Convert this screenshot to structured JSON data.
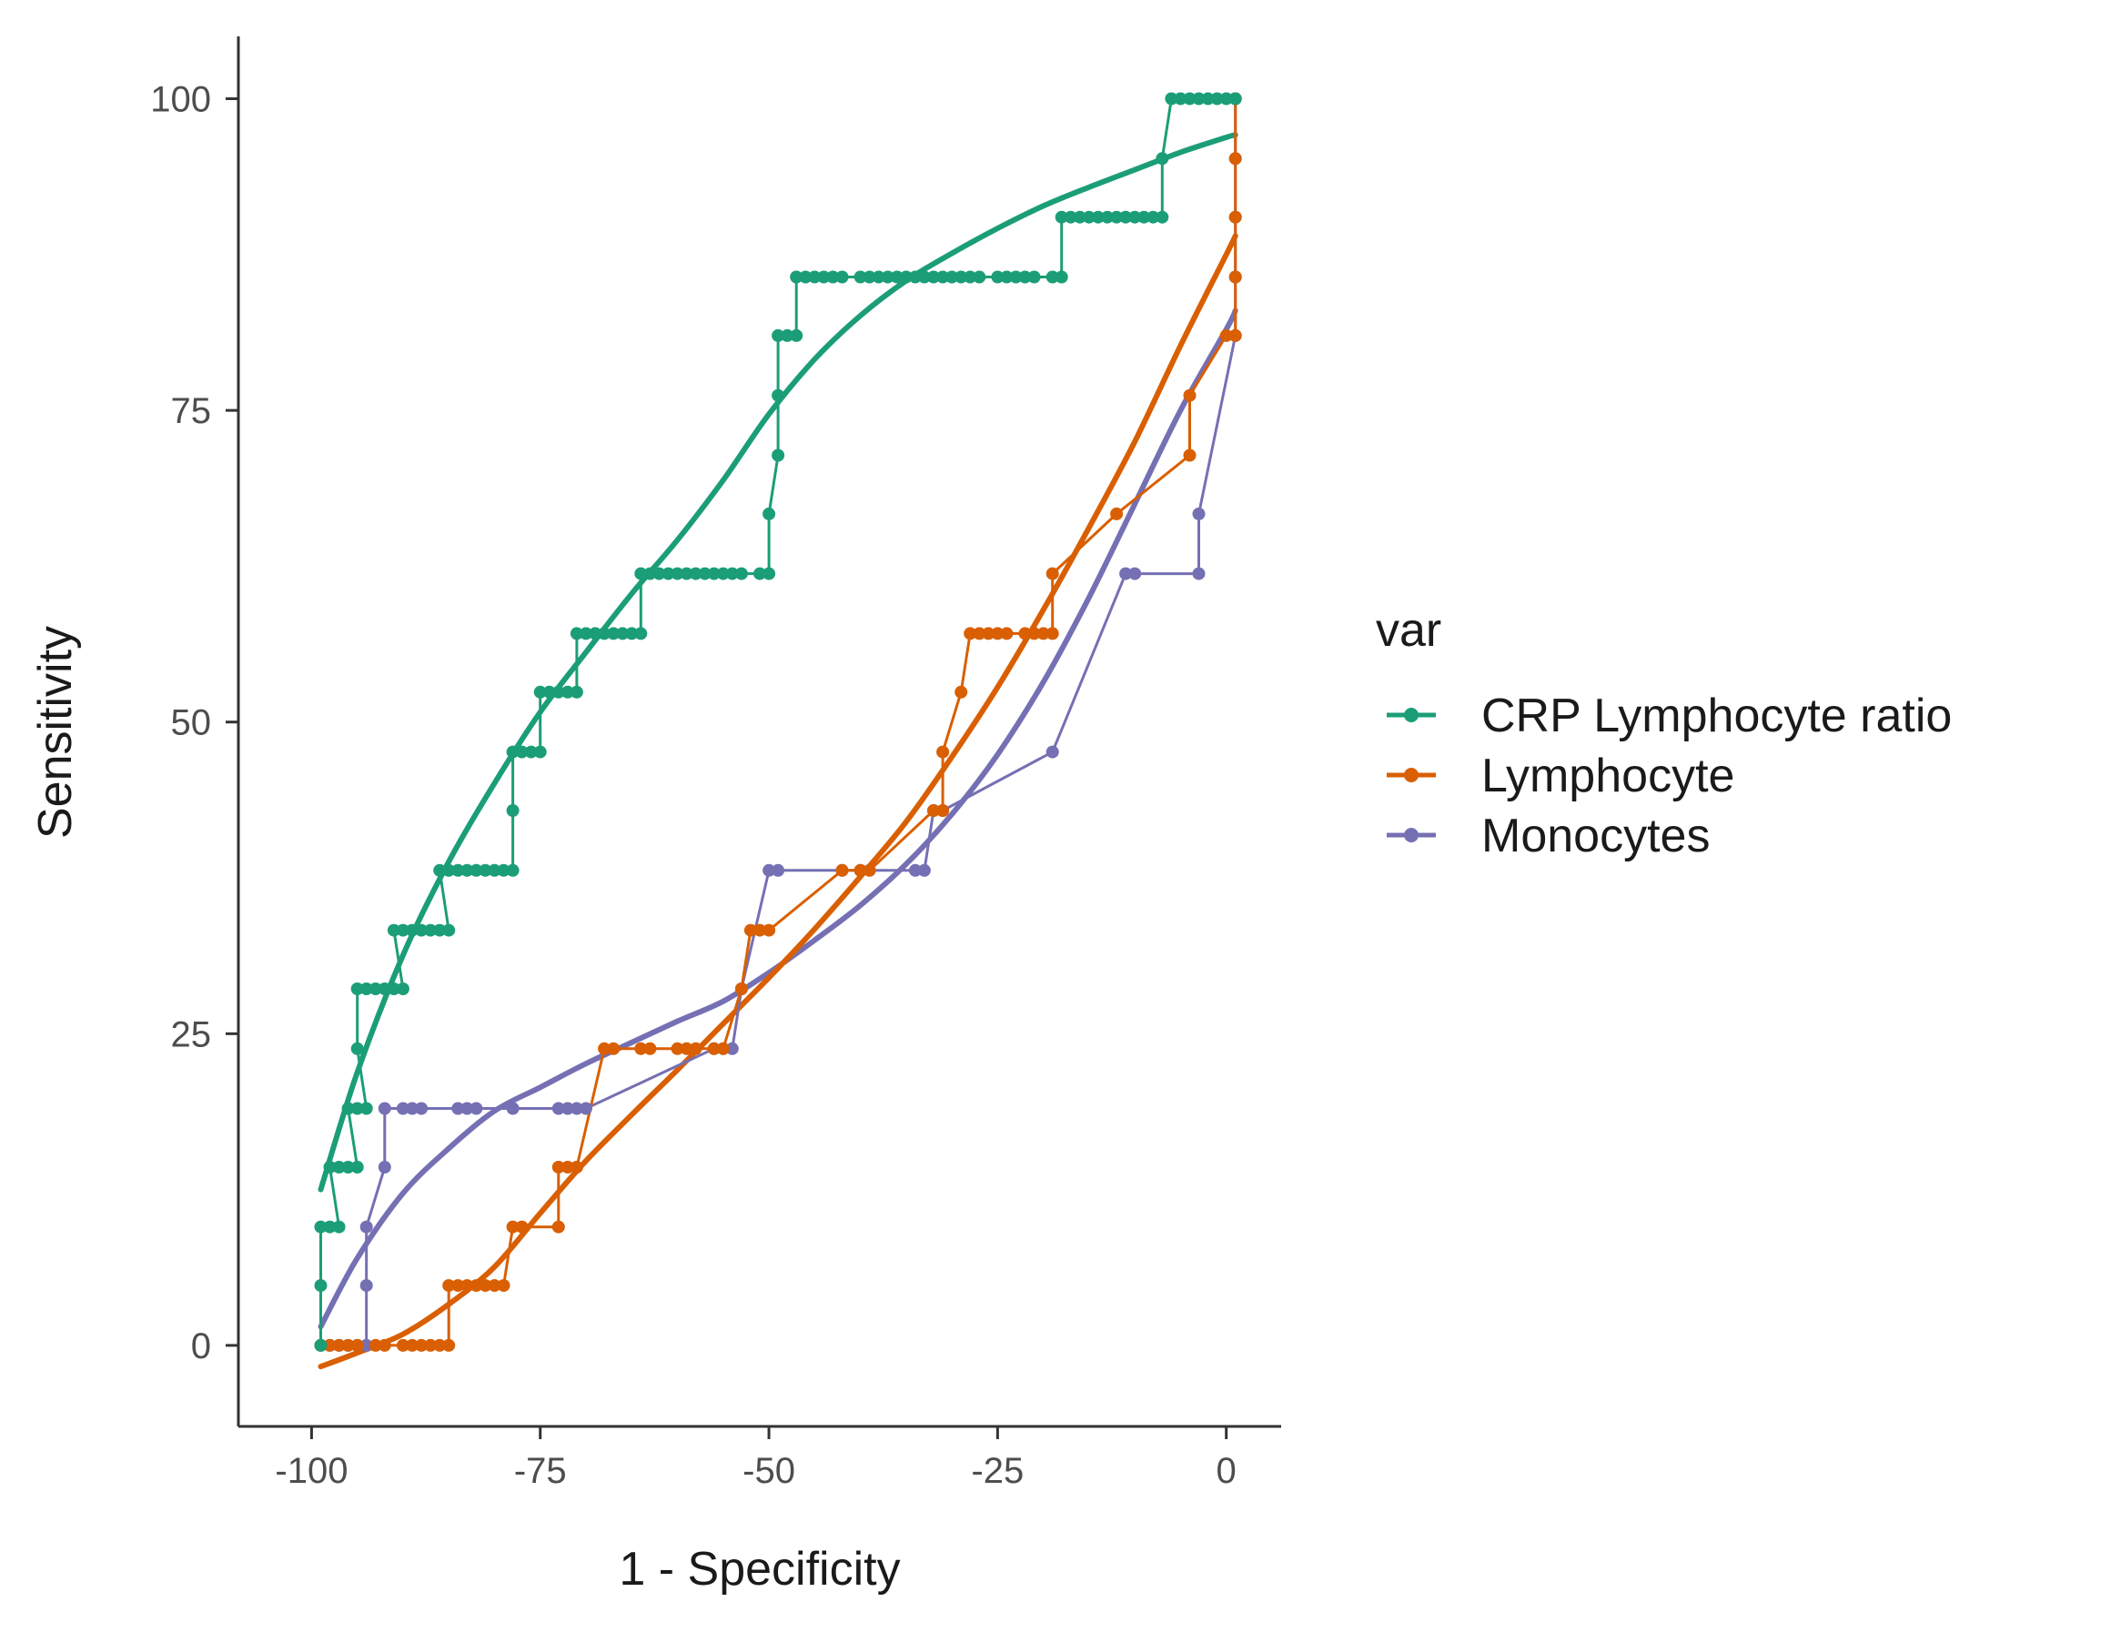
{
  "chart_data": {
    "type": "line",
    "title": "",
    "xlabel": "1 - Specificity",
    "ylabel": "Sensitivity",
    "xlim": [
      -108,
      6
    ],
    "ylim": [
      -6.5,
      105
    ],
    "x_ticks": [
      -100,
      -75,
      -50,
      -25,
      0
    ],
    "x_tick_labels": [
      "-100",
      "-75",
      "-50",
      "-25",
      "0"
    ],
    "y_ticks": [
      0,
      25,
      50,
      75,
      100
    ],
    "y_tick_labels": [
      "0",
      "25",
      "50",
      "75",
      "100"
    ],
    "grid": false,
    "legend": {
      "title": "var",
      "position": "right"
    },
    "series": [
      {
        "name": "CRP Lymphocyte ratio",
        "color": "#1b9e77",
        "points": [
          [
            -99,
            0
          ],
          [
            -99,
            4.8
          ],
          [
            -99,
            9.5
          ],
          [
            -98,
            9.5
          ],
          [
            -97,
            9.5
          ],
          [
            -98,
            14.3
          ],
          [
            -97,
            14.3
          ],
          [
            -96,
            14.3
          ],
          [
            -95,
            14.3
          ],
          [
            -96,
            19
          ],
          [
            -95,
            19
          ],
          [
            -94,
            19
          ],
          [
            -95,
            23.8
          ],
          [
            -95,
            28.6
          ],
          [
            -94,
            28.6
          ],
          [
            -93,
            28.6
          ],
          [
            -92,
            28.6
          ],
          [
            -91,
            28.6
          ],
          [
            -90,
            28.6
          ],
          [
            -91,
            33.3
          ],
          [
            -90,
            33.3
          ],
          [
            -89,
            33.3
          ],
          [
            -88,
            33.3
          ],
          [
            -87,
            33.3
          ],
          [
            -86,
            33.3
          ],
          [
            -85,
            33.3
          ],
          [
            -86,
            38.1
          ],
          [
            -85,
            38.1
          ],
          [
            -84,
            38.1
          ],
          [
            -83,
            38.1
          ],
          [
            -82,
            38.1
          ],
          [
            -81,
            38.1
          ],
          [
            -80,
            38.1
          ],
          [
            -79,
            38.1
          ],
          [
            -78,
            38.1
          ],
          [
            -78,
            42.9
          ],
          [
            -78,
            47.6
          ],
          [
            -77,
            47.6
          ],
          [
            -76,
            47.6
          ],
          [
            -75,
            47.6
          ],
          [
            -75,
            52.4
          ],
          [
            -74,
            52.4
          ],
          [
            -73,
            52.4
          ],
          [
            -72,
            52.4
          ],
          [
            -71,
            52.4
          ],
          [
            -71,
            57.1
          ],
          [
            -70,
            57.1
          ],
          [
            -69,
            57.1
          ],
          [
            -68,
            57.1
          ],
          [
            -67,
            57.1
          ],
          [
            -66,
            57.1
          ],
          [
            -65,
            57.1
          ],
          [
            -64,
            57.1
          ],
          [
            -64,
            61.9
          ],
          [
            -63,
            61.9
          ],
          [
            -62,
            61.9
          ],
          [
            -61,
            61.9
          ],
          [
            -60,
            61.9
          ],
          [
            -59,
            61.9
          ],
          [
            -58,
            61.9
          ],
          [
            -57,
            61.9
          ],
          [
            -56,
            61.9
          ],
          [
            -55,
            61.9
          ],
          [
            -54,
            61.9
          ],
          [
            -53,
            61.9
          ],
          [
            -51,
            61.9
          ],
          [
            -50,
            61.9
          ],
          [
            -50,
            66.7
          ],
          [
            -49,
            71.4
          ],
          [
            -49,
            76.2
          ],
          [
            -49,
            81
          ],
          [
            -48,
            81
          ],
          [
            -47,
            81
          ],
          [
            -47,
            85.7
          ],
          [
            -46,
            85.7
          ],
          [
            -45,
            85.7
          ],
          [
            -44,
            85.7
          ],
          [
            -43,
            85.7
          ],
          [
            -42,
            85.7
          ],
          [
            -40,
            85.7
          ],
          [
            -39,
            85.7
          ],
          [
            -38,
            85.7
          ],
          [
            -37,
            85.7
          ],
          [
            -36,
            85.7
          ],
          [
            -35,
            85.7
          ],
          [
            -34,
            85.7
          ],
          [
            -33,
            85.7
          ],
          [
            -32,
            85.7
          ],
          [
            -31,
            85.7
          ],
          [
            -30,
            85.7
          ],
          [
            -29,
            85.7
          ],
          [
            -28,
            85.7
          ],
          [
            -27,
            85.7
          ],
          [
            -25,
            85.7
          ],
          [
            -24,
            85.7
          ],
          [
            -23,
            85.7
          ],
          [
            -22,
            85.7
          ],
          [
            -21,
            85.7
          ],
          [
            -19,
            85.7
          ],
          [
            -18,
            85.7
          ],
          [
            -18,
            90.5
          ],
          [
            -17,
            90.5
          ],
          [
            -16,
            90.5
          ],
          [
            -15,
            90.5
          ],
          [
            -14,
            90.5
          ],
          [
            -13,
            90.5
          ],
          [
            -12,
            90.5
          ],
          [
            -11,
            90.5
          ],
          [
            -10,
            90.5
          ],
          [
            -9,
            90.5
          ],
          [
            -8,
            90.5
          ],
          [
            -7,
            90.5
          ],
          [
            -7,
            95.2
          ],
          [
            -6,
            100
          ],
          [
            -5,
            100
          ],
          [
            -4,
            100
          ],
          [
            -3,
            100
          ],
          [
            -2,
            100
          ],
          [
            -1,
            100
          ],
          [
            0,
            100
          ],
          [
            1,
            100
          ]
        ],
        "fit": [
          [
            -99,
            12.5
          ],
          [
            -95,
            21.9
          ],
          [
            -90,
            31.3
          ],
          [
            -85,
            38.8
          ],
          [
            -80,
            45.1
          ],
          [
            -75,
            50.8
          ],
          [
            -70,
            55.6
          ],
          [
            -65,
            60.3
          ],
          [
            -60,
            64.6
          ],
          [
            -55,
            69.4
          ],
          [
            -50,
            74.7
          ],
          [
            -45,
            79.1
          ],
          [
            -40,
            82.6
          ],
          [
            -35,
            85.4
          ],
          [
            -30,
            87.6
          ],
          [
            -25,
            89.6
          ],
          [
            -20,
            91.4
          ],
          [
            -15,
            92.9
          ],
          [
            -10,
            94.3
          ],
          [
            -5,
            95.7
          ],
          [
            0,
            96.9
          ],
          [
            1,
            97.1
          ]
        ]
      },
      {
        "name": "Lymphocyte",
        "color": "#d95f02",
        "points": [
          [
            -99,
            0
          ],
          [
            -98,
            0
          ],
          [
            -97,
            0
          ],
          [
            -96,
            0
          ],
          [
            -95,
            0
          ],
          [
            -93,
            0
          ],
          [
            -92,
            0
          ],
          [
            -90,
            0
          ],
          [
            -89,
            0
          ],
          [
            -88,
            0
          ],
          [
            -87,
            0
          ],
          [
            -86,
            0
          ],
          [
            -85,
            0
          ],
          [
            -85,
            4.8
          ],
          [
            -84,
            4.8
          ],
          [
            -83,
            4.8
          ],
          [
            -82,
            4.8
          ],
          [
            -81,
            4.8
          ],
          [
            -80,
            4.8
          ],
          [
            -79,
            4.8
          ],
          [
            -78,
            9.5
          ],
          [
            -77,
            9.5
          ],
          [
            -73,
            9.5
          ],
          [
            -73,
            14.3
          ],
          [
            -72,
            14.3
          ],
          [
            -71,
            14.3
          ],
          [
            -68,
            23.8
          ],
          [
            -67,
            23.8
          ],
          [
            -64,
            23.8
          ],
          [
            -63,
            23.8
          ],
          [
            -60,
            23.8
          ],
          [
            -59,
            23.8
          ],
          [
            -58,
            23.8
          ],
          [
            -56,
            23.8
          ],
          [
            -55,
            23.8
          ],
          [
            -53,
            28.6
          ],
          [
            -52,
            33.3
          ],
          [
            -51,
            33.3
          ],
          [
            -50,
            33.3
          ],
          [
            -42,
            38.1
          ],
          [
            -40,
            38.1
          ],
          [
            -39,
            38.1
          ],
          [
            -32,
            42.9
          ],
          [
            -31,
            42.9
          ],
          [
            -31,
            47.6
          ],
          [
            -29,
            52.4
          ],
          [
            -28,
            57.1
          ],
          [
            -27,
            57.1
          ],
          [
            -26,
            57.1
          ],
          [
            -25,
            57.1
          ],
          [
            -24,
            57.1
          ],
          [
            -22,
            57.1
          ],
          [
            -21,
            57.1
          ],
          [
            -20,
            57.1
          ],
          [
            -19,
            57.1
          ],
          [
            -19,
            61.9
          ],
          [
            -12,
            66.7
          ],
          [
            -4,
            71.4
          ],
          [
            -4,
            76.2
          ],
          [
            0,
            81
          ],
          [
            1,
            81
          ],
          [
            1,
            85.7
          ],
          [
            1,
            90.5
          ],
          [
            1,
            95.2
          ],
          [
            1,
            100
          ]
        ],
        "fit": [
          [
            -99,
            -1.7
          ],
          [
            -95,
            -0.6
          ],
          [
            -90,
            0.9
          ],
          [
            -85,
            3.3
          ],
          [
            -80,
            6.3
          ],
          [
            -75,
            10.6
          ],
          [
            -70,
            14.8
          ],
          [
            -65,
            18.5
          ],
          [
            -60,
            22.1
          ],
          [
            -55,
            25.8
          ],
          [
            -50,
            29.5
          ],
          [
            -45,
            33.4
          ],
          [
            -40,
            37.6
          ],
          [
            -35,
            42
          ],
          [
            -30,
            47.2
          ],
          [
            -25,
            52.8
          ],
          [
            -20,
            59
          ],
          [
            -15,
            65.6
          ],
          [
            -10,
            72.5
          ],
          [
            -5,
            80.2
          ],
          [
            0,
            87.5
          ],
          [
            1,
            89
          ]
        ]
      },
      {
        "name": "Monocytes",
        "color": "#7570b3",
        "points": [
          [
            -99,
            0
          ],
          [
            -98,
            0
          ],
          [
            -97,
            0
          ],
          [
            -96,
            0
          ],
          [
            -95,
            0
          ],
          [
            -94,
            0
          ],
          [
            -94,
            4.8
          ],
          [
            -94,
            9.5
          ],
          [
            -92,
            14.3
          ],
          [
            -92,
            19
          ],
          [
            -90,
            19
          ],
          [
            -89,
            19
          ],
          [
            -88,
            19
          ],
          [
            -84,
            19
          ],
          [
            -83,
            19
          ],
          [
            -82,
            19
          ],
          [
            -78,
            19
          ],
          [
            -73,
            19
          ],
          [
            -72,
            19
          ],
          [
            -71,
            19
          ],
          [
            -70,
            19
          ],
          [
            -56,
            23.8
          ],
          [
            -55,
            23.8
          ],
          [
            -54,
            23.8
          ],
          [
            -53,
            28.6
          ],
          [
            -50,
            38.1
          ],
          [
            -49,
            38.1
          ],
          [
            -42,
            38.1
          ],
          [
            -40,
            38.1
          ],
          [
            -34,
            38.1
          ],
          [
            -33,
            38.1
          ],
          [
            -32,
            42.9
          ],
          [
            -31,
            42.9
          ],
          [
            -19,
            47.6
          ],
          [
            -11,
            61.9
          ],
          [
            -10,
            61.9
          ],
          [
            -3,
            61.9
          ],
          [
            -3,
            66.7
          ],
          [
            1,
            81
          ],
          [
            1,
            85.7
          ],
          [
            1,
            90.5
          ],
          [
            1,
            95.2
          ],
          [
            1,
            100
          ]
        ],
        "fit": [
          [
            -99,
            1.5
          ],
          [
            -95,
            7
          ],
          [
            -90,
            12.2
          ],
          [
            -85,
            15.8
          ],
          [
            -80,
            18.8
          ],
          [
            -75,
            20.7
          ],
          [
            -70,
            22.6
          ],
          [
            -65,
            24.3
          ],
          [
            -60,
            26
          ],
          [
            -55,
            27.6
          ],
          [
            -50,
            29.9
          ],
          [
            -45,
            32.5
          ],
          [
            -40,
            35.3
          ],
          [
            -35,
            38.6
          ],
          [
            -30,
            42.6
          ],
          [
            -25,
            47.4
          ],
          [
            -20,
            53.2
          ],
          [
            -15,
            60
          ],
          [
            -10,
            67.5
          ],
          [
            -5,
            75
          ],
          [
            0,
            81.5
          ],
          [
            1,
            83
          ]
        ]
      }
    ]
  }
}
